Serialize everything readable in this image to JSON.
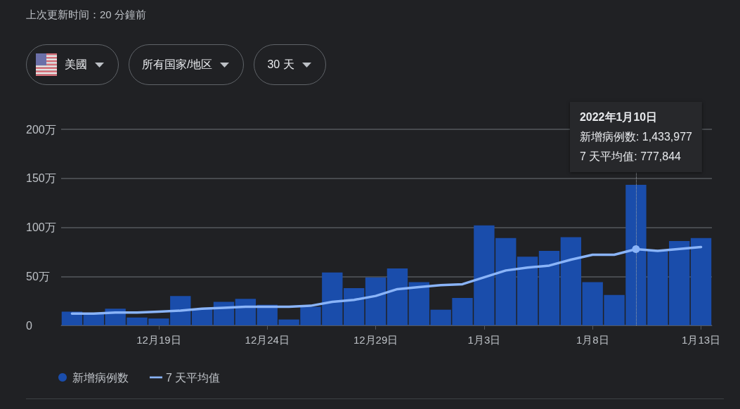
{
  "chart_data": {
    "type": "bar",
    "x": [
      "2021-12-15",
      "2021-12-16",
      "2021-12-17",
      "2021-12-18",
      "2021-12-19",
      "2021-12-20",
      "2021-12-21",
      "2021-12-22",
      "2021-12-23",
      "2021-12-24",
      "2021-12-25",
      "2021-12-26",
      "2021-12-27",
      "2021-12-28",
      "2021-12-29",
      "2021-12-30",
      "2021-12-31",
      "2022-01-01",
      "2022-01-02",
      "2022-01-03",
      "2022-01-04",
      "2022-01-05",
      "2022-01-06",
      "2022-01-07",
      "2022-01-08",
      "2022-01-09",
      "2022-01-10",
      "2022-01-11",
      "2022-01-12",
      "2022-01-13"
    ],
    "xlim": [
      "2021-12-14T12:00",
      "2022-01-13T12:00"
    ],
    "xticks": [
      {
        "value": "2021-12-19",
        "label": "12月19日"
      },
      {
        "value": "2021-12-24",
        "label": "12月24日"
      },
      {
        "value": "2021-12-29",
        "label": "12月29日"
      },
      {
        "value": "2022-01-03",
        "label": "1月3日"
      },
      {
        "value": "2022-01-08",
        "label": "1月8日"
      },
      {
        "value": "2022-01-13",
        "label": "1月13日"
      }
    ],
    "ylim": [
      0,
      200
    ],
    "yticks": [
      0,
      {
        "value": 50,
        "label": "50万"
      },
      {
        "value": 100,
        "label": "100万"
      },
      {
        "value": 150,
        "label": "150万"
      },
      {
        "value": 200,
        "label": "200万"
      }
    ],
    "series": [
      {
        "name": "新增病例数",
        "color": "#1a4dab",
        "values": [
          14,
          12,
          17,
          8,
          7,
          30,
          17,
          24,
          27,
          21,
          6,
          19,
          54,
          38,
          49,
          58,
          44,
          16,
          28,
          102,
          89,
          70,
          76,
          90,
          44,
          31,
          143.3977,
          77,
          86,
          89
        ]
      },
      {
        "name": "7 天平均值",
        "type": "line",
        "color": "#8ab4f8",
        "values": [
          12,
          12,
          13,
          13,
          14,
          15,
          17,
          18,
          19,
          19,
          19,
          20,
          24,
          26,
          30,
          37,
          39,
          41,
          42,
          49,
          56,
          59,
          61,
          67,
          72,
          72,
          77.7844,
          76,
          78,
          80
        ]
      }
    ],
    "grid": "y",
    "legend": "bottom left",
    "marker": "none",
    "ref_lines": [
      {
        "axis": "x",
        "value": "2022-01-10",
        "color": "#9aa0a6",
        "line_style": "dotted"
      }
    ],
    "annotations": [
      "上次更新时间：20 分鐘前",
      "美國",
      "所有国家/地区",
      "30 天",
      "2022年1月10日",
      {
        "text": "新增病例数: 1,433,977",
        "x": "2022-01-10"
      },
      {
        "text": "7 天平均值: 777,844",
        "x": "2022-01-10"
      }
    ]
  }
}
